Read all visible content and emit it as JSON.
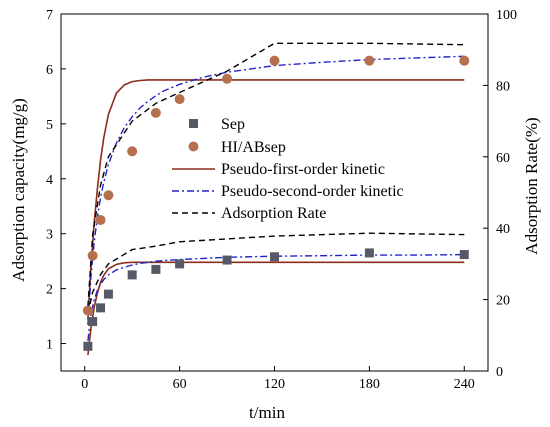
{
  "chart_data": {
    "type": "scatter",
    "xlabel": "t/min",
    "ylabel": "Adsorption capacity(mg/g)",
    "y2label": "Adsorption Rate(%)",
    "xlim": [
      -15,
      255
    ],
    "ylim": [
      0.5,
      7
    ],
    "y2lim": [
      0,
      100
    ],
    "xticks": [
      0,
      60,
      120,
      180,
      240
    ],
    "yticks": [
      1,
      2,
      3,
      4,
      5,
      6,
      7
    ],
    "y2ticks": [
      0,
      20,
      40,
      60,
      80,
      100
    ],
    "legend_position": "center",
    "series": [
      {
        "name": "Sep",
        "kind": "points",
        "marker": "square",
        "color": "#555a66",
        "axis": "left",
        "x": [
          2,
          5,
          10,
          15,
          30,
          45,
          60,
          90,
          120,
          180,
          240
        ],
        "y": [
          0.95,
          1.4,
          1.65,
          1.9,
          2.25,
          2.35,
          2.45,
          2.52,
          2.58,
          2.65,
          2.62
        ]
      },
      {
        "name": "HI/ABsep",
        "kind": "points",
        "marker": "circle",
        "color": "#b5714d",
        "axis": "left",
        "x": [
          2,
          5,
          10,
          15,
          30,
          45,
          60,
          90,
          120,
          180,
          240
        ],
        "y": [
          1.6,
          2.6,
          3.25,
          3.7,
          4.5,
          5.2,
          5.45,
          5.82,
          6.15,
          6.15,
          6.15
        ]
      },
      {
        "name": "Pseudo-first-order kinetic",
        "kind": "line",
        "style": "solid",
        "color": "#8b2e1a",
        "axis": "left",
        "x": [
          2,
          4,
          6,
          8,
          10,
          12,
          15,
          20,
          25,
          30,
          35,
          40,
          45,
          50,
          60,
          75,
          90,
          120,
          150,
          180,
          210,
          240
        ],
        "y": [
          1.44,
          2.41,
          3.2,
          3.82,
          4.33,
          4.74,
          5.17,
          5.56,
          5.71,
          5.77,
          5.79,
          5.8,
          5.8,
          5.8,
          5.8,
          5.8,
          5.8,
          5.8,
          5.8,
          5.8,
          5.8,
          5.8
        ],
        "x_lower": [
          2,
          4,
          6,
          8,
          10,
          12,
          15,
          20,
          25,
          30,
          35,
          40,
          45,
          50,
          60,
          75,
          90,
          120,
          150,
          180,
          210,
          240
        ],
        "y_lower": [
          0.79,
          1.29,
          1.66,
          1.92,
          2.11,
          2.24,
          2.36,
          2.44,
          2.47,
          2.48,
          2.48,
          2.48,
          2.48,
          2.48,
          2.48,
          2.48,
          2.48,
          2.48,
          2.48,
          2.48,
          2.48,
          2.48
        ]
      },
      {
        "name": "Pseudo-second-order kinetic",
        "kind": "line",
        "style": "dashdot",
        "color": "#2323c8",
        "axis": "left",
        "x": [
          2,
          4,
          6,
          8,
          10,
          12,
          15,
          20,
          25,
          30,
          35,
          40,
          45,
          50,
          60,
          75,
          90,
          120,
          150,
          180,
          210,
          240
        ],
        "y": [
          1.34,
          2.23,
          2.85,
          3.3,
          3.65,
          3.93,
          4.26,
          4.65,
          4.93,
          5.13,
          5.29,
          5.41,
          5.51,
          5.6,
          5.72,
          5.85,
          5.94,
          6.06,
          6.12,
          6.17,
          6.2,
          6.23
        ],
        "x_lower": [
          2,
          4,
          6,
          8,
          10,
          12,
          15,
          20,
          25,
          30,
          35,
          40,
          45,
          50,
          60,
          75,
          90,
          120,
          150,
          180,
          210,
          240
        ],
        "y_lower": [
          1.05,
          1.54,
          1.8,
          1.97,
          2.08,
          2.16,
          2.25,
          2.34,
          2.39,
          2.43,
          2.46,
          2.48,
          2.5,
          2.51,
          2.53,
          2.55,
          2.57,
          2.59,
          2.6,
          2.61,
          2.61,
          2.62
        ]
      },
      {
        "name": "Adsorption Rate",
        "kind": "line",
        "style": "dashed",
        "color": "#000000",
        "axis": "right",
        "x": [
          2,
          5,
          10,
          15,
          30,
          45,
          60,
          90,
          120,
          180,
          240
        ],
        "y": [
          18,
          38,
          52,
          60,
          70,
          75,
          78,
          84,
          91.8,
          91.8,
          91.4
        ],
        "x_lower": [
          2,
          5,
          10,
          15,
          30,
          45,
          60,
          90,
          120,
          180,
          240
        ],
        "y_lower": [
          16,
          22,
          27,
          30,
          34,
          35,
          36.2,
          37,
          37.8,
          38.6,
          38.2
        ]
      }
    ]
  }
}
